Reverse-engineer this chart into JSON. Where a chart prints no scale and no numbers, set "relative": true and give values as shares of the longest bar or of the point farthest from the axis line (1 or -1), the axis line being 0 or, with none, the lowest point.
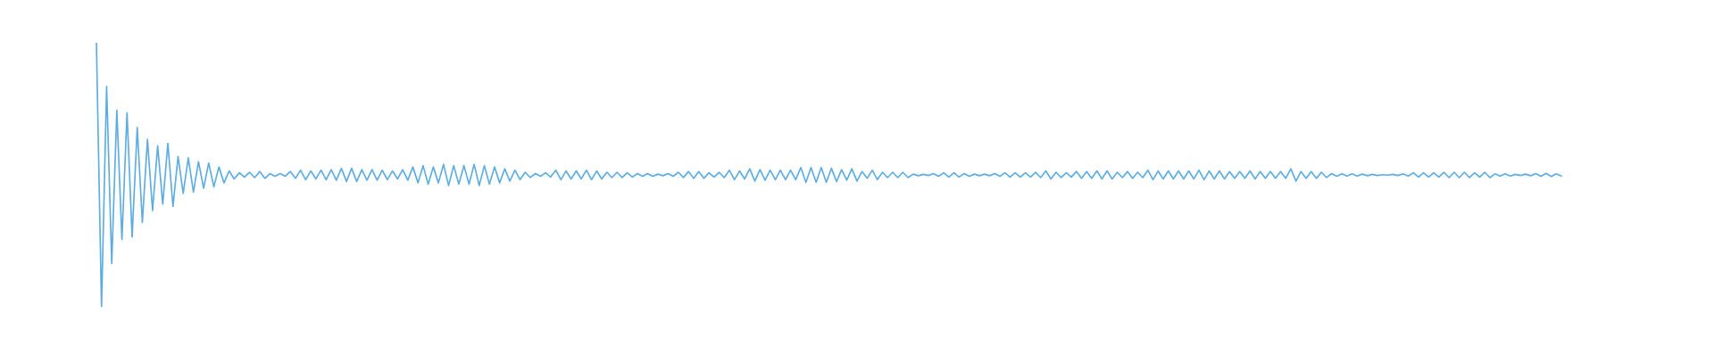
{
  "chart_data": {
    "type": "line",
    "relative": true,
    "categories": [
      null,
      null,
      null,
      null,
      null,
      null,
      null,
      null,
      null,
      null,
      null,
      null,
      null,
      null,
      null,
      null,
      null,
      null,
      null,
      null,
      null,
      null,
      null,
      null,
      null,
      null,
      null,
      null,
      null,
      null,
      null,
      null,
      null,
      null,
      null,
      null,
      null,
      null,
      null,
      null,
      null,
      null,
      null,
      null,
      null,
      null,
      null,
      null,
      null,
      null,
      null,
      null,
      null,
      null,
      null,
      null,
      null,
      null,
      null,
      null,
      null,
      null,
      null,
      null,
      null,
      null,
      null,
      null,
      null,
      null,
      null,
      null,
      null,
      null,
      null,
      null,
      null,
      null,
      null,
      null,
      null,
      null,
      null,
      null,
      null,
      null,
      null,
      null,
      null,
      null,
      null,
      null,
      null,
      null,
      null,
      null,
      null,
      null,
      null,
      null,
      null,
      null,
      null,
      null,
      null,
      null,
      null,
      null,
      null,
      null,
      null,
      null,
      null,
      null,
      null,
      null,
      null,
      null,
      null,
      null,
      null,
      null,
      null,
      null,
      null,
      null,
      null,
      null,
      null,
      null,
      null,
      null,
      null,
      null,
      null,
      null,
      null,
      null,
      null,
      null,
      null,
      null,
      null,
      null,
      null,
      null,
      null,
      null,
      null,
      null,
      null,
      null,
      null,
      null,
      null,
      null,
      null,
      null,
      null,
      null,
      null,
      null,
      null,
      null,
      null,
      null,
      null,
      null,
      null,
      null,
      null,
      null,
      null,
      null,
      null,
      null,
      null,
      null,
      null,
      null,
      null,
      null,
      null,
      null,
      null,
      null,
      null,
      null,
      null,
      null,
      null,
      null,
      null,
      null,
      null,
      null,
      null,
      null,
      null,
      null,
      null,
      null,
      null,
      null,
      null,
      null,
      null,
      null,
      null,
      null,
      null,
      null,
      null,
      null,
      null,
      null,
      null,
      null,
      null,
      null,
      null,
      null,
      null,
      null,
      null,
      null,
      null,
      null,
      null,
      null,
      null,
      null,
      null,
      null,
      null,
      null,
      null,
      null,
      null,
      null,
      null,
      null,
      null,
      null,
      null,
      null,
      null,
      null,
      null,
      null,
      null,
      null,
      null,
      null,
      null,
      null,
      null,
      null,
      null,
      null,
      null,
      null,
      null,
      null,
      null,
      null,
      null,
      null,
      null,
      null,
      null,
      null,
      null,
      null,
      null,
      null,
      null,
      null,
      null,
      null,
      null,
      null,
      null,
      null,
      null,
      null,
      null,
      null
    ],
    "series": [
      {
        "color": "#5dade2",
        "values": [
          1,
          0,
          0.835,
          0.165,
          0.745,
          0.255,
          0.735,
          0.265,
          0.68,
          0.32,
          0.635,
          0.365,
          0.61,
          0.39,
          0.62,
          0.38,
          0.57,
          0.43,
          0.565,
          0.435,
          0.55,
          0.45,
          0.545,
          0.455,
          0.53,
          0.47,
          0.515,
          0.485,
          0.508,
          0.492,
          0.51,
          0.49,
          0.513,
          0.487,
          0.505,
          0.495,
          0.505,
          0.495,
          0.513,
          0.487,
          0.518,
          0.482,
          0.515,
          0.485,
          0.518,
          0.482,
          0.52,
          0.48,
          0.525,
          0.475,
          0.525,
          0.475,
          0.52,
          0.48,
          0.52,
          0.48,
          0.518,
          0.482,
          0.515,
          0.485,
          0.52,
          0.48,
          0.53,
          0.47,
          0.535,
          0.465,
          0.53,
          0.47,
          0.54,
          0.46,
          0.535,
          0.465,
          0.535,
          0.465,
          0.54,
          0.46,
          0.535,
          0.465,
          0.53,
          0.47,
          0.523,
          0.477,
          0.518,
          0.482,
          0.51,
          0.49,
          0.505,
          0.495,
          0.508,
          0.492,
          0.518,
          0.482,
          0.515,
          0.485,
          0.515,
          0.485,
          0.518,
          0.482,
          0.515,
          0.485,
          0.51,
          0.49,
          0.51,
          0.49,
          0.508,
          0.492,
          0.505,
          0.495,
          0.505,
          0.495,
          0.503,
          0.497,
          0.505,
          0.495,
          0.51,
          0.49,
          0.513,
          0.487,
          0.513,
          0.487,
          0.508,
          0.492,
          0.51,
          0.49,
          0.518,
          0.482,
          0.515,
          0.485,
          0.523,
          0.477,
          0.52,
          0.48,
          0.518,
          0.482,
          0.518,
          0.482,
          0.518,
          0.482,
          0.528,
          0.472,
          0.528,
          0.472,
          0.528,
          0.472,
          0.525,
          0.475,
          0.52,
          0.48,
          0.523,
          0.477,
          0.513,
          0.487,
          0.518,
          0.482,
          0.51,
          0.49,
          0.51,
          0.49,
          0.51,
          0.49,
          0.503,
          0.497,
          0.502,
          0.498,
          0.505,
          0.495,
          0.508,
          0.492,
          0.508,
          0.492,
          0.505,
          0.495,
          0.503,
          0.497,
          0.503,
          0.497,
          0.505,
          0.495,
          0.508,
          0.492,
          0.508,
          0.492,
          0.508,
          0.492,
          0.51,
          0.49,
          0.515,
          0.485,
          0.51,
          0.49,
          0.508,
          0.492,
          0.513,
          0.487,
          0.513,
          0.487,
          0.515,
          0.485,
          0.515,
          0.485,
          0.51,
          0.49,
          0.513,
          0.487,
          0.51,
          0.49,
          0.518,
          0.482,
          0.515,
          0.485,
          0.515,
          0.485,
          0.515,
          0.485,
          0.515,
          0.485,
          0.518,
          0.482,
          0.515,
          0.485,
          0.515,
          0.485,
          0.513,
          0.487,
          0.513,
          0.487,
          0.515,
          0.485,
          0.513,
          0.487,
          0.513,
          0.487,
          0.513,
          0.487,
          0.523,
          0.477,
          0.513,
          0.487,
          0.513,
          0.487,
          0.51,
          0.49,
          0.505,
          0.495,
          0.504,
          0.496,
          0.504,
          0.496,
          0.503,
          0.497,
          0.502,
          0.498,
          0.501,
          0.499,
          0.502,
          0.498,
          0.504,
          0.496,
          0.508,
          0.492,
          0.508,
          0.492,
          0.508,
          0.492,
          0.51,
          0.49,
          0.51,
          0.49,
          0.51,
          0.49,
          0.508,
          0.492,
          0.51,
          0.49,
          0.504,
          0.496,
          0.504,
          0.496,
          0.502,
          0.498,
          0.503,
          0.497,
          0.505,
          0.495,
          0.506,
          0.494,
          0.504,
          0.496
        ]
      }
    ]
  }
}
